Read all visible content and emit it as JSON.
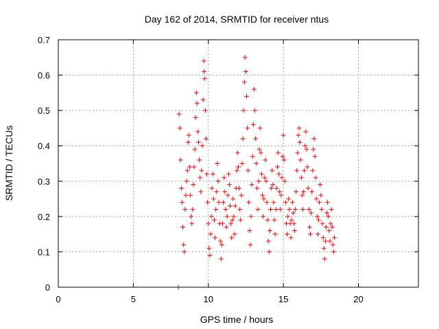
{
  "chart_data": {
    "type": "scatter",
    "title": "Day 162 of 2014, SRMTID for receiver ntus",
    "xlabel": "GPS time / hours",
    "ylabel": "SRMTID / TECUs",
    "xlim": [
      0,
      24
    ],
    "ylim": [
      0,
      0.7
    ],
    "xticks": [
      0,
      5,
      10,
      15,
      20
    ],
    "yticks": [
      0,
      0.1,
      0.2,
      0.3,
      0.4,
      0.5,
      0.6,
      0.7
    ],
    "grid": true,
    "marker": "+",
    "series": [
      {
        "name": "SRMTID",
        "color": "#ff0000",
        "points": [
          [
            8.0,
            0.0
          ],
          [
            8.05,
            0.49
          ],
          [
            8.1,
            0.45
          ],
          [
            8.15,
            0.36
          ],
          [
            8.2,
            0.28
          ],
          [
            8.25,
            0.24
          ],
          [
            8.3,
            0.17
          ],
          [
            8.35,
            0.12
          ],
          [
            8.4,
            0.1
          ],
          [
            8.45,
            0.22
          ],
          [
            8.5,
            0.26
          ],
          [
            8.55,
            0.3
          ],
          [
            8.6,
            0.33
          ],
          [
            8.65,
            0.41
          ],
          [
            8.7,
            0.43
          ],
          [
            8.75,
            0.34
          ],
          [
            8.8,
            0.26
          ],
          [
            8.85,
            0.2
          ],
          [
            8.9,
            0.18
          ],
          [
            8.95,
            0.22
          ],
          [
            9.0,
            0.29
          ],
          [
            9.05,
            0.34
          ],
          [
            9.1,
            0.39
          ],
          [
            9.15,
            0.48
          ],
          [
            9.2,
            0.55
          ],
          [
            9.25,
            0.52
          ],
          [
            9.3,
            0.44
          ],
          [
            9.35,
            0.41
          ],
          [
            9.4,
            0.36
          ],
          [
            9.45,
            0.31
          ],
          [
            9.5,
            0.27
          ],
          [
            9.55,
            0.33
          ],
          [
            9.6,
            0.4
          ],
          [
            9.65,
            0.53
          ],
          [
            9.7,
            0.64
          ],
          [
            9.72,
            0.61
          ],
          [
            9.75,
            0.59
          ],
          [
            9.8,
            0.5
          ],
          [
            9.85,
            0.42
          ],
          [
            9.9,
            0.32
          ],
          [
            9.95,
            0.24
          ],
          [
            10.0,
            0.18
          ],
          [
            10.05,
            0.11
          ],
          [
            10.1,
            0.09
          ],
          [
            10.15,
            0.15
          ],
          [
            10.2,
            0.2
          ],
          [
            10.25,
            0.28
          ],
          [
            10.3,
            0.32
          ],
          [
            10.35,
            0.25
          ],
          [
            10.4,
            0.19
          ],
          [
            10.45,
            0.14
          ],
          [
            10.5,
            0.22
          ],
          [
            10.55,
            0.27
          ],
          [
            10.6,
            0.35
          ],
          [
            10.65,
            0.3
          ],
          [
            10.7,
            0.24
          ],
          [
            10.75,
            0.18
          ],
          [
            10.8,
            0.13
          ],
          [
            10.85,
            0.08
          ],
          [
            10.9,
            0.12
          ],
          [
            10.95,
            0.18
          ],
          [
            11.0,
            0.24
          ],
          [
            11.05,
            0.31
          ],
          [
            11.1,
            0.27
          ],
          [
            11.15,
            0.22
          ],
          [
            11.2,
            0.17
          ],
          [
            11.25,
            0.2
          ],
          [
            11.3,
            0.26
          ],
          [
            11.35,
            0.32
          ],
          [
            11.4,
            0.29
          ],
          [
            11.45,
            0.23
          ],
          [
            11.5,
            0.18
          ],
          [
            11.55,
            0.14
          ],
          [
            11.6,
            0.19
          ],
          [
            11.65,
            0.25
          ],
          [
            11.7,
            0.2
          ],
          [
            11.75,
            0.15
          ],
          [
            11.8,
            0.23
          ],
          [
            11.85,
            0.28
          ],
          [
            11.9,
            0.33
          ],
          [
            11.95,
            0.38
          ],
          [
            12.0,
            0.34
          ],
          [
            12.05,
            0.28
          ],
          [
            12.1,
            0.22
          ],
          [
            12.15,
            0.19
          ],
          [
            12.2,
            0.26
          ],
          [
            12.25,
            0.35
          ],
          [
            12.3,
            0.42
          ],
          [
            12.35,
            0.5
          ],
          [
            12.4,
            0.58
          ],
          [
            12.45,
            0.65
          ],
          [
            12.5,
            0.61
          ],
          [
            12.55,
            0.54
          ],
          [
            12.6,
            0.45
          ],
          [
            12.65,
            0.33
          ],
          [
            12.7,
            0.24
          ],
          [
            12.75,
            0.16
          ],
          [
            12.8,
            0.12
          ],
          [
            12.85,
            0.2
          ],
          [
            12.9,
            0.29
          ],
          [
            12.95,
            0.37
          ],
          [
            13.0,
            0.46
          ],
          [
            13.05,
            0.56
          ],
          [
            13.1,
            0.5
          ],
          [
            13.15,
            0.42
          ],
          [
            13.2,
            0.35
          ],
          [
            13.25,
            0.28
          ],
          [
            13.3,
            0.22
          ],
          [
            13.35,
            0.3
          ],
          [
            13.4,
            0.39
          ],
          [
            13.45,
            0.45
          ],
          [
            13.5,
            0.38
          ],
          [
            13.55,
            0.32
          ],
          [
            13.6,
            0.26
          ],
          [
            13.65,
            0.2
          ],
          [
            13.7,
            0.25
          ],
          [
            13.75,
            0.31
          ],
          [
            13.8,
            0.36
          ],
          [
            13.85,
            0.3
          ],
          [
            13.9,
            0.24
          ],
          [
            13.95,
            0.19
          ],
          [
            14.0,
            0.13
          ],
          [
            14.05,
            0.1
          ],
          [
            14.1,
            0.16
          ],
          [
            14.15,
            0.22
          ],
          [
            14.2,
            0.28
          ],
          [
            14.25,
            0.33
          ],
          [
            14.3,
            0.29
          ],
          [
            14.35,
            0.24
          ],
          [
            14.4,
            0.19
          ],
          [
            14.45,
            0.15
          ],
          [
            14.5,
            0.22
          ],
          [
            14.55,
            0.28
          ],
          [
            14.6,
            0.34
          ],
          [
            14.65,
            0.38
          ],
          [
            14.7,
            0.32
          ],
          [
            14.75,
            0.27
          ],
          [
            14.8,
            0.22
          ],
          [
            14.85,
            0.26
          ],
          [
            14.9,
            0.31
          ],
          [
            14.95,
            0.37
          ],
          [
            15.0,
            0.43
          ],
          [
            15.05,
            0.36
          ],
          [
            15.1,
            0.3
          ],
          [
            15.15,
            0.24
          ],
          [
            15.2,
            0.18
          ],
          [
            15.25,
            0.15
          ],
          [
            15.3,
            0.2
          ],
          [
            15.35,
            0.25
          ],
          [
            15.4,
            0.22
          ],
          [
            15.45,
            0.18
          ],
          [
            15.5,
            0.14
          ],
          [
            15.55,
            0.19
          ],
          [
            15.6,
            0.24
          ],
          [
            15.65,
            0.21
          ],
          [
            15.7,
            0.18
          ],
          [
            15.75,
            0.16
          ],
          [
            15.8,
            0.22
          ],
          [
            15.85,
            0.27
          ],
          [
            15.9,
            0.33
          ],
          [
            15.95,
            0.38
          ],
          [
            16.0,
            0.43
          ],
          [
            16.05,
            0.45
          ],
          [
            16.1,
            0.41
          ],
          [
            16.15,
            0.36
          ],
          [
            16.2,
            0.31
          ],
          [
            16.25,
            0.26
          ],
          [
            16.3,
            0.22
          ],
          [
            16.35,
            0.27
          ],
          [
            16.4,
            0.33
          ],
          [
            16.45,
            0.4
          ],
          [
            16.5,
            0.44
          ],
          [
            16.55,
            0.39
          ],
          [
            16.6,
            0.34
          ],
          [
            16.65,
            0.28
          ],
          [
            16.7,
            0.22
          ],
          [
            16.75,
            0.17
          ],
          [
            16.8,
            0.15
          ],
          [
            16.85,
            0.21
          ],
          [
            16.9,
            0.27
          ],
          [
            16.95,
            0.33
          ],
          [
            17.0,
            0.39
          ],
          [
            17.05,
            0.42
          ],
          [
            17.1,
            0.37
          ],
          [
            17.15,
            0.31
          ],
          [
            17.2,
            0.25
          ],
          [
            17.25,
            0.2
          ],
          [
            17.3,
            0.15
          ],
          [
            17.35,
            0.19
          ],
          [
            17.4,
            0.24
          ],
          [
            17.45,
            0.29
          ],
          [
            17.5,
            0.26
          ],
          [
            17.55,
            0.22
          ],
          [
            17.6,
            0.18
          ],
          [
            17.65,
            0.14
          ],
          [
            17.7,
            0.11
          ],
          [
            17.75,
            0.08
          ],
          [
            17.8,
            0.13
          ],
          [
            17.85,
            0.17
          ],
          [
            17.9,
            0.21
          ],
          [
            17.95,
            0.24
          ],
          [
            18.0,
            0.2
          ],
          [
            18.05,
            0.16
          ],
          [
            18.1,
            0.13
          ],
          [
            18.15,
            0.18
          ],
          [
            18.2,
            0.22
          ],
          [
            18.25,
            0.17
          ],
          [
            18.3,
            0.12
          ],
          [
            18.35,
            0.1
          ],
          [
            18.4,
            0.14
          ]
        ]
      }
    ]
  }
}
